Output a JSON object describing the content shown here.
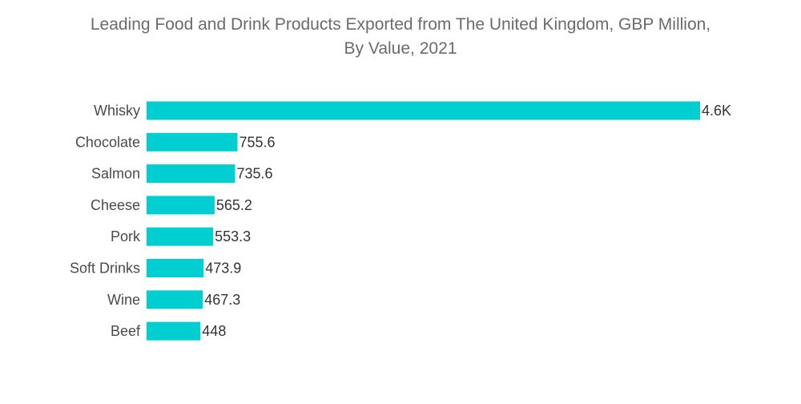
{
  "chart_data": {
    "type": "bar",
    "orientation": "horizontal",
    "title_line1": "Leading Food and Drink Products Exported from The United Kingdom, GBP Million,",
    "title_line2": "By Value, 2021",
    "categories": [
      "Whisky",
      "Chocolate",
      "Salmon",
      "Cheese",
      "Pork",
      "Soft Drinks",
      "Wine",
      "Beef"
    ],
    "values": [
      4600,
      755.6,
      735.6,
      565.2,
      553.3,
      473.9,
      467.3,
      448
    ],
    "value_labels": [
      "4.6K",
      "755.6",
      "735.6",
      "565.2",
      "553.3",
      "473.9",
      "467.3",
      "448"
    ],
    "xlabel": "",
    "ylabel": "",
    "xlim": [
      0,
      4600
    ],
    "grid": false,
    "legend": "none",
    "bar_color": "#00ced1"
  }
}
